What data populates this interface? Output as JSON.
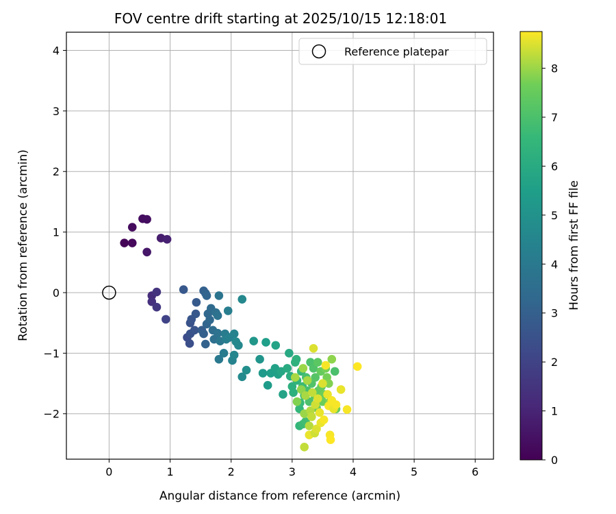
{
  "chart_data": {
    "type": "scatter",
    "title": "FOV centre drift starting at 2025/10/15 12:18:01",
    "xlabel": "Angular distance from reference (arcmin)",
    "ylabel": "Rotation from reference (arcmin)",
    "xlim": [
      -0.7,
      6.3
    ],
    "ylim": [
      -2.75,
      4.3
    ],
    "xticks": [
      0,
      1,
      2,
      3,
      4,
      5,
      6
    ],
    "yticks": [
      -2,
      -1,
      0,
      1,
      2,
      3,
      4
    ],
    "grid": true,
    "legend_position": "top-right",
    "legend": [
      {
        "label": "Reference platepar",
        "marker": "open-circle"
      }
    ],
    "reference_point": {
      "x": 0,
      "y": 0
    },
    "colorbar": {
      "label": "Hours from first FF file",
      "colormap": "viridis",
      "range": [
        0,
        8.75
      ],
      "ticks": [
        0,
        1,
        2,
        3,
        4,
        5,
        6,
        7,
        8
      ]
    },
    "points": [
      {
        "x": 0.25,
        "y": 0.82,
        "t": 0.1
      },
      {
        "x": 0.38,
        "y": 0.82,
        "t": 0.2
      },
      {
        "x": 0.38,
        "y": 1.08,
        "t": 0.3
      },
      {
        "x": 0.55,
        "y": 1.22,
        "t": 0.35
      },
      {
        "x": 0.62,
        "y": 1.21,
        "t": 0.4
      },
      {
        "x": 0.62,
        "y": 0.67,
        "t": 0.6
      },
      {
        "x": 0.85,
        "y": 0.9,
        "t": 0.8
      },
      {
        "x": 0.95,
        "y": 0.88,
        "t": 0.9
      },
      {
        "x": 0.7,
        "y": -0.05,
        "t": 1.3
      },
      {
        "x": 0.7,
        "y": -0.15,
        "t": 1.4
      },
      {
        "x": 0.78,
        "y": 0.01,
        "t": 1.5
      },
      {
        "x": 0.78,
        "y": -0.24,
        "t": 1.6
      },
      {
        "x": 0.93,
        "y": -0.44,
        "t": 2.0
      },
      {
        "x": 1.22,
        "y": 0.05,
        "t": 2.7
      },
      {
        "x": 1.28,
        "y": -0.74,
        "t": 2.3
      },
      {
        "x": 1.32,
        "y": -0.84,
        "t": 2.4
      },
      {
        "x": 1.33,
        "y": -0.68,
        "t": 2.5
      },
      {
        "x": 1.33,
        "y": -0.5,
        "t": 2.5
      },
      {
        "x": 1.35,
        "y": -0.44,
        "t": 2.6
      },
      {
        "x": 1.4,
        "y": -0.62,
        "t": 2.6
      },
      {
        "x": 1.42,
        "y": -0.35,
        "t": 2.7
      },
      {
        "x": 1.43,
        "y": -0.16,
        "t": 2.8
      },
      {
        "x": 1.52,
        "y": -0.62,
        "t": 2.9
      },
      {
        "x": 1.55,
        "y": -0.68,
        "t": 3.0
      },
      {
        "x": 1.55,
        "y": 0.03,
        "t": 3.0
      },
      {
        "x": 1.58,
        "y": -0.85,
        "t": 3.1
      },
      {
        "x": 1.58,
        "y": -0.01,
        "t": 3.1
      },
      {
        "x": 1.6,
        "y": -0.05,
        "t": 3.2
      },
      {
        "x": 1.6,
        "y": -0.52,
        "t": 3.2
      },
      {
        "x": 1.62,
        "y": -0.35,
        "t": 3.3
      },
      {
        "x": 1.65,
        "y": -0.45,
        "t": 3.3
      },
      {
        "x": 1.67,
        "y": -0.26,
        "t": 3.4
      },
      {
        "x": 1.7,
        "y": -0.62,
        "t": 3.5
      },
      {
        "x": 1.72,
        "y": -0.77,
        "t": 3.6
      },
      {
        "x": 1.75,
        "y": -0.33,
        "t": 3.6
      },
      {
        "x": 1.78,
        "y": -0.38,
        "t": 3.7
      },
      {
        "x": 1.78,
        "y": -0.67,
        "t": 3.7
      },
      {
        "x": 1.8,
        "y": -0.05,
        "t": 3.8
      },
      {
        "x": 1.82,
        "y": -0.8,
        "t": 3.9
      },
      {
        "x": 1.8,
        "y": -1.1,
        "t": 4.0
      },
      {
        "x": 1.88,
        "y": -1.0,
        "t": 4.1
      },
      {
        "x": 1.9,
        "y": -0.68,
        "t": 4.1
      },
      {
        "x": 1.92,
        "y": -0.77,
        "t": 4.2
      },
      {
        "x": 1.95,
        "y": -0.3,
        "t": 4.2
      },
      {
        "x": 1.97,
        "y": -0.74,
        "t": 4.3
      },
      {
        "x": 2.02,
        "y": -1.12,
        "t": 4.4
      },
      {
        "x": 2.05,
        "y": -0.68,
        "t": 4.4
      },
      {
        "x": 2.05,
        "y": -1.03,
        "t": 4.5
      },
      {
        "x": 2.08,
        "y": -0.81,
        "t": 4.6
      },
      {
        "x": 2.12,
        "y": -0.87,
        "t": 4.6
      },
      {
        "x": 2.18,
        "y": -1.39,
        "t": 4.7
      },
      {
        "x": 2.18,
        "y": -0.11,
        "t": 4.6
      },
      {
        "x": 2.25,
        "y": -1.28,
        "t": 4.9
      },
      {
        "x": 2.37,
        "y": -0.8,
        "t": 5.2
      },
      {
        "x": 2.47,
        "y": -1.1,
        "t": 5.1
      },
      {
        "x": 2.52,
        "y": -1.33,
        "t": 5.3
      },
      {
        "x": 2.57,
        "y": -0.82,
        "t": 5.5
      },
      {
        "x": 2.6,
        "y": -1.53,
        "t": 5.4
      },
      {
        "x": 2.65,
        "y": -1.33,
        "t": 5.5
      },
      {
        "x": 2.72,
        "y": -1.25,
        "t": 5.6
      },
      {
        "x": 2.73,
        "y": -0.87,
        "t": 5.7
      },
      {
        "x": 2.77,
        "y": -1.35,
        "t": 5.6
      },
      {
        "x": 2.82,
        "y": -1.3,
        "t": 5.8
      },
      {
        "x": 2.85,
        "y": -1.68,
        "t": 5.7
      },
      {
        "x": 2.92,
        "y": -1.25,
        "t": 6.0
      },
      {
        "x": 2.95,
        "y": -1.0,
        "t": 5.9
      },
      {
        "x": 2.97,
        "y": -1.38,
        "t": 6.1
      },
      {
        "x": 3.0,
        "y": -1.55,
        "t": 6.2
      },
      {
        "x": 3.02,
        "y": -1.65,
        "t": 6.2
      },
      {
        "x": 3.05,
        "y": -1.15,
        "t": 6.3
      },
      {
        "x": 3.07,
        "y": -1.1,
        "t": 6.3
      },
      {
        "x": 3.08,
        "y": -1.45,
        "t": 6.4
      },
      {
        "x": 3.12,
        "y": -2.2,
        "t": 6.5
      },
      {
        "x": 3.12,
        "y": -1.92,
        "t": 6.5
      },
      {
        "x": 3.13,
        "y": -1.82,
        "t": 6.6
      },
      {
        "x": 3.15,
        "y": -1.3,
        "t": 6.6
      },
      {
        "x": 3.17,
        "y": -1.55,
        "t": 6.7
      },
      {
        "x": 3.18,
        "y": -2.17,
        "t": 6.7
      },
      {
        "x": 3.2,
        "y": -1.7,
        "t": 6.8
      },
      {
        "x": 3.22,
        "y": -2.13,
        "t": 6.8
      },
      {
        "x": 3.23,
        "y": -1.4,
        "t": 6.9
      },
      {
        "x": 3.25,
        "y": -1.62,
        "t": 6.9
      },
      {
        "x": 3.28,
        "y": -1.8,
        "t": 7.0
      },
      {
        "x": 3.3,
        "y": -1.15,
        "t": 7.0
      },
      {
        "x": 3.32,
        "y": -1.5,
        "t": 7.1
      },
      {
        "x": 3.35,
        "y": -1.25,
        "t": 7.1
      },
      {
        "x": 3.37,
        "y": -1.7,
        "t": 7.2
      },
      {
        "x": 3.38,
        "y": -1.4,
        "t": 7.2
      },
      {
        "x": 3.4,
        "y": -1.9,
        "t": 7.3
      },
      {
        "x": 3.42,
        "y": -1.15,
        "t": 7.3
      },
      {
        "x": 3.43,
        "y": -1.62,
        "t": 7.4
      },
      {
        "x": 3.45,
        "y": -1.73,
        "t": 7.4
      },
      {
        "x": 3.47,
        "y": -1.3,
        "t": 7.5
      },
      {
        "x": 3.48,
        "y": -1.55,
        "t": 7.5
      },
      {
        "x": 3.5,
        "y": -1.8,
        "t": 7.6
      },
      {
        "x": 3.52,
        "y": -1.68,
        "t": 7.6
      },
      {
        "x": 3.55,
        "y": -1.25,
        "t": 7.7
      },
      {
        "x": 3.57,
        "y": -1.4,
        "t": 7.7
      },
      {
        "x": 3.6,
        "y": -1.5,
        "t": 7.8
      },
      {
        "x": 3.62,
        "y": -1.8,
        "t": 7.8
      },
      {
        "x": 3.65,
        "y": -1.1,
        "t": 7.9
      },
      {
        "x": 3.67,
        "y": -1.85,
        "t": 7.9
      },
      {
        "x": 3.7,
        "y": -1.3,
        "t": 7.0
      },
      {
        "x": 3.72,
        "y": -1.92,
        "t": 7.5
      },
      {
        "x": 3.08,
        "y": -1.8,
        "t": 7.8
      },
      {
        "x": 3.15,
        "y": -1.6,
        "t": 7.9
      },
      {
        "x": 3.18,
        "y": -1.25,
        "t": 8.0
      },
      {
        "x": 3.2,
        "y": -2.0,
        "t": 8.0
      },
      {
        "x": 3.22,
        "y": -1.7,
        "t": 8.1
      },
      {
        "x": 3.25,
        "y": -1.45,
        "t": 8.1
      },
      {
        "x": 3.28,
        "y": -2.2,
        "t": 8.2
      },
      {
        "x": 3.28,
        "y": -2.35,
        "t": 8.6
      },
      {
        "x": 3.3,
        "y": -1.95,
        "t": 8.2
      },
      {
        "x": 3.32,
        "y": -2.05,
        "t": 8.3
      },
      {
        "x": 3.33,
        "y": -1.65,
        "t": 8.3
      },
      {
        "x": 3.35,
        "y": -0.92,
        "t": 8.5
      },
      {
        "x": 3.37,
        "y": -2.32,
        "t": 8.4
      },
      {
        "x": 3.38,
        "y": -1.85,
        "t": 8.4
      },
      {
        "x": 3.4,
        "y": -2.25,
        "t": 8.5
      },
      {
        "x": 3.42,
        "y": -1.75,
        "t": 8.5
      },
      {
        "x": 3.45,
        "y": -1.98,
        "t": 8.6
      },
      {
        "x": 3.47,
        "y": -2.15,
        "t": 8.6
      },
      {
        "x": 3.5,
        "y": -1.5,
        "t": 8.5
      },
      {
        "x": 3.52,
        "y": -2.1,
        "t": 8.7
      },
      {
        "x": 3.55,
        "y": -1.2,
        "t": 8.7
      },
      {
        "x": 3.58,
        "y": -1.68,
        "t": 8.6
      },
      {
        "x": 3.6,
        "y": -1.87,
        "t": 8.7
      },
      {
        "x": 3.62,
        "y": -2.35,
        "t": 8.7
      },
      {
        "x": 3.63,
        "y": -2.43,
        "t": 8.75
      },
      {
        "x": 3.65,
        "y": -1.78,
        "t": 8.7
      },
      {
        "x": 3.68,
        "y": -1.92,
        "t": 8.6
      },
      {
        "x": 3.72,
        "y": -1.85,
        "t": 8.7
      },
      {
        "x": 3.8,
        "y": -1.6,
        "t": 8.6
      },
      {
        "x": 3.9,
        "y": -1.93,
        "t": 8.7
      },
      {
        "x": 4.07,
        "y": -1.22,
        "t": 8.75
      },
      {
        "x": 3.2,
        "y": -2.55,
        "t": 8.3
      },
      {
        "x": 3.05,
        "y": -1.4,
        "t": 8.1
      }
    ]
  }
}
